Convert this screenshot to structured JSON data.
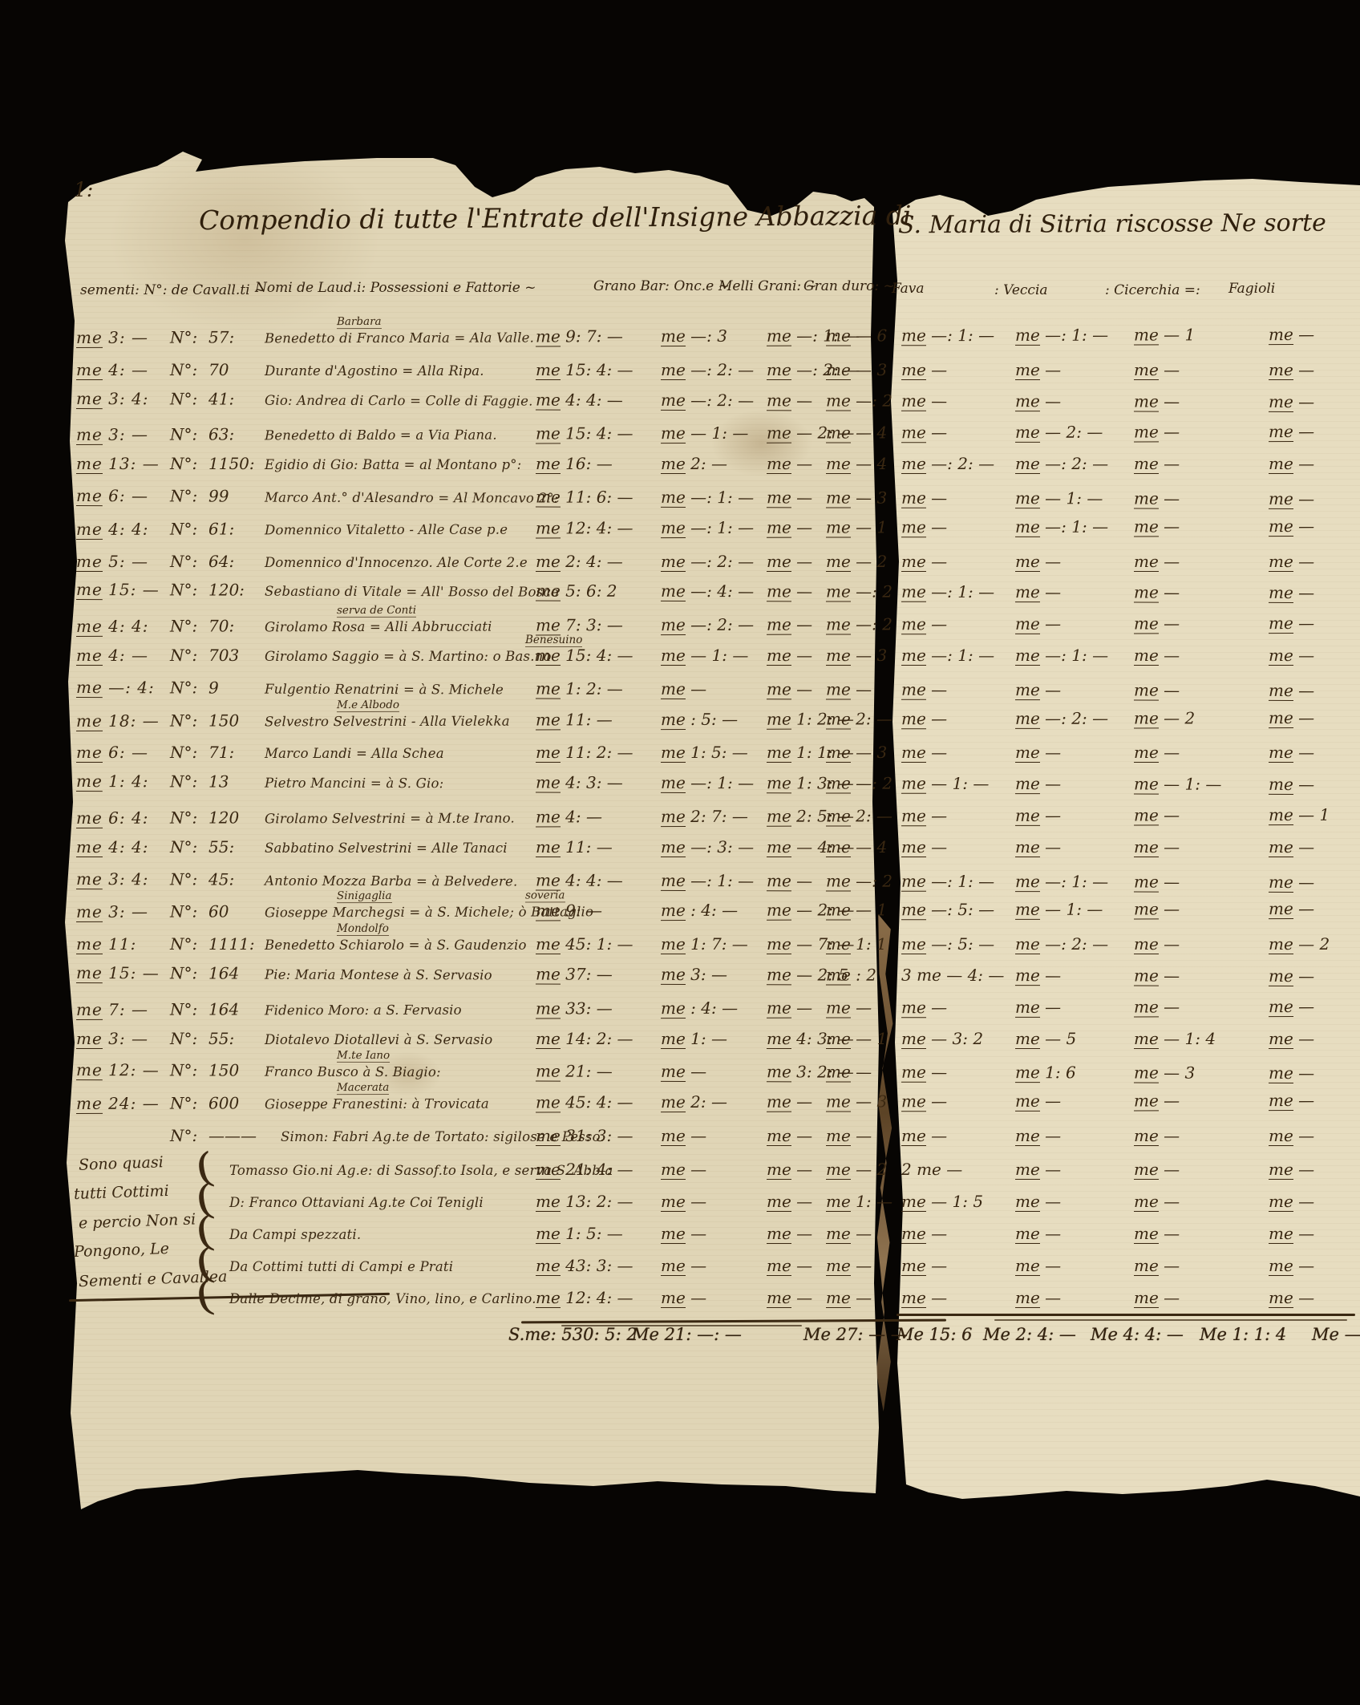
{
  "folio_mark": "1:",
  "title": {
    "left": "Compendio di tutte l'Entrate dell'Insigne Abbazzia di",
    "right": "S. Maria di Sitria riscosse Ne sorte"
  },
  "headers": {
    "left": [
      "sementi: N°: de Cavall.ti ~",
      "Nomi de Laud.i: Possessioni e Fattorie ~",
      "Grano Bar: Onc.e ~",
      "Melli Grani: ~",
      "Gran duro: ~",
      "Fava"
    ],
    "right": [
      ": Veccia",
      ": Cicerchia =:",
      "Fagioli"
    ]
  },
  "rows": [
    {
      "s": "me 3: —",
      "no": "N°:",
      "num": "57:",
      "ann": "Barbara",
      "name": "Benedetto di Franco Maria",
      "loc": "= Ala Valle.",
      "g": "me 9: 7: —",
      "m": "me —: 3",
      "d": "me —: 1: —",
      "f": "me — 6",
      "v": "me —: 1: —",
      "c": "me —: 1: —",
      "fg": "me — 1",
      "x": "me —"
    },
    {
      "s": "me 4: —",
      "no": "N°:",
      "num": "70",
      "name": "Durante d'Agostino",
      "loc": "= Alla Ripa.",
      "g": "me 15: 4: —",
      "m": "me —: 2: —",
      "d": "me —: 2: —",
      "f": "me — 3",
      "v": "me —",
      "c": "me —",
      "fg": "me —",
      "x": "me —"
    },
    {
      "s": "me 3: 4:",
      "no": "N°:",
      "num": "41:",
      "name": "Gio: Andrea di Carlo",
      "loc": "= Colle di Faggie.",
      "g": "me 4: 4: —",
      "m": "me —: 2: —",
      "d": "me —",
      "f": "me —: 2",
      "v": "me —",
      "c": "me —",
      "fg": "me —",
      "x": "me —"
    },
    {
      "s": "me 3: —",
      "no": "N°:",
      "num": "63:",
      "name": "Benedetto di Baldo",
      "loc": "= a Via Piana.",
      "g": "me 15: 4: —",
      "m": "me — 1: —",
      "d": "me — 2: —",
      "f": "me — 4",
      "v": "me —",
      "c": "me — 2: —",
      "fg": "me —",
      "x": "me —"
    },
    {
      "s": "me 13: —",
      "no": "N°:",
      "num": "1150:",
      "name": "Egidio di Gio: Batta",
      "loc": "= al Montano p°:",
      "g": "me 16: —",
      "m": "me 2: —",
      "d": "me —",
      "f": "me — 4",
      "v": "me —: 2: —",
      "c": "me —: 2: —",
      "fg": "me —",
      "x": "me —"
    },
    {
      "s": "me 6: —",
      "no": "N°:",
      "num": "99",
      "name": "Marco Ant.° d'Alesandro",
      "loc": "= Al Moncavo 2°:",
      "g": "me 11: 6: —",
      "m": "me —: 1: —",
      "d": "me —",
      "f": "me — 3",
      "v": "me —",
      "c": "me — 1: —",
      "fg": "me —",
      "x": "me —"
    },
    {
      "s": "me 4: 4:",
      "no": "N°:",
      "num": "61:",
      "name": "Domennico Vitaletto",
      "loc": "- Alle Case p.e",
      "g": "me 12: 4: —",
      "m": "me —: 1: —",
      "d": "me —",
      "f": "me — 1",
      "v": "me —",
      "c": "me —: 1: —",
      "fg": "me —",
      "x": "me —"
    },
    {
      "s": "me 5: —",
      "no": "N°:",
      "num": "64:",
      "name": "Domennico d'Innocenzo.",
      "loc": "Ale Corte 2.e",
      "g": "me 2: 4: —",
      "m": "me —: 2: —",
      "d": "me —",
      "f": "me — 2",
      "v": "me —",
      "c": "me —",
      "fg": "me —",
      "x": "me —"
    },
    {
      "s": "me 15: —",
      "no": "N°:",
      "num": "120:",
      "name": "Sebastiano di Vitale",
      "loc": "= All' Bosso del Bosco",
      "g": "me 5: 6: 2",
      "m": "me —: 4: —",
      "d": "me —",
      "f": "me —: 2",
      "v": "me —: 1: —",
      "c": "me —",
      "fg": "me —",
      "x": "me —"
    },
    {
      "s": "me 4: 4:",
      "no": "N°:",
      "num": "70:",
      "ann": "serva de Conti",
      "name": "Girolamo Rosa",
      "loc": "= Alli Abbrucciati",
      "g": "me 7: 3: —",
      "m": "me —: 2: —",
      "d": "me —",
      "f": "me —: 2",
      "v": "me —",
      "c": "me —",
      "fg": "me —",
      "x": "me —"
    },
    {
      "s": "me 4: —",
      "no": "N°:",
      "num": "703",
      "ann2": "Benesuino",
      "name": "Girolamo Saggio",
      "loc": "= à S. Martino: o Bas.no",
      "g": "me 15: 4: —",
      "m": "me — 1: —",
      "d": "me —",
      "f": "me — 3",
      "v": "me —: 1: —",
      "c": "me —: 1: —",
      "fg": "me —",
      "x": "me —"
    },
    {
      "s": "me —: 4:",
      "no": "N°:",
      "num": "9",
      "name": "Fulgentio Renatrini",
      "loc": "= à S. Michele",
      "g": "me 1: 2: —",
      "m": "me —",
      "d": "me —",
      "f": "me —",
      "v": "me —",
      "c": "me —",
      "fg": "me —",
      "x": "me —"
    },
    {
      "s": "me 18: —",
      "no": "N°:",
      "num": "150",
      "ann": "M.e Albodo",
      "name": "Selvestro Selvestrini",
      "loc": "- Alla Vielekka",
      "g": "me 11: —",
      "m": "me : 5: —",
      "d": "me 1: 2: —",
      "f": "me 2: —",
      "v": "me —",
      "c": "me —: 2: —",
      "fg": "me — 2",
      "x": "me —"
    },
    {
      "s": "me 6: —",
      "no": "N°:",
      "num": "71:",
      "name": "Marco Landi",
      "loc": "= Alla Schea",
      "g": "me 11: 2: —",
      "m": "me 1: 5: —",
      "d": "me 1: 1: —",
      "f": "me — 3",
      "v": "me —",
      "c": "me —",
      "fg": "me —",
      "x": "me —"
    },
    {
      "s": "me 1: 4:",
      "no": "N°:",
      "num": "13",
      "name": "Pietro Mancini",
      "loc": "= à S. Gio:",
      "g": "me 4: 3: —",
      "m": "me —: 1: —",
      "d": "me 1: 3: —",
      "f": "me —: 2",
      "v": "me — 1: —",
      "c": "me —",
      "fg": "me — 1: —",
      "x": "me —"
    },
    {
      "s": "me 6: 4:",
      "no": "N°:",
      "num": "120",
      "name": "Girolamo Selvestrini",
      "loc": "= à M.te Irano.",
      "g": "me 4: —",
      "m": "me 2: 7: —",
      "d": "me 2: 5: —",
      "f": "me 2: —",
      "v": "me —",
      "c": "me —",
      "fg": "me —",
      "x": "me — 1"
    },
    {
      "s": "me 4: 4:",
      "no": "N°:",
      "num": "55:",
      "name": "Sabbatino Selvestrini",
      "loc": "= Alle Tanaci",
      "g": "me 11: —",
      "m": "me —: 3: —",
      "d": "me — 4: —",
      "f": "me — 4",
      "v": "me —",
      "c": "me —",
      "fg": "me —",
      "x": "me —"
    },
    {
      "s": "me 3: 4:",
      "no": "N°:",
      "num": "45:",
      "name": "Antonio Mozza Barba",
      "loc": "= à Belvedere.",
      "g": "me 4: 4: —",
      "m": "me —: 1: —",
      "d": "me —",
      "f": "me —: 2",
      "v": "me —: 1: —",
      "c": "me —: 1: —",
      "fg": "me —",
      "x": "me —"
    },
    {
      "s": "me 3: —",
      "no": "N°:",
      "num": "60",
      "ann": "Sinigaglia",
      "ann2": "soveria",
      "name": "Gioseppe Marchegsi",
      "loc": "= à S. Michele; ò Battaglio",
      "g": "me 9: —",
      "m": "me : 4: —",
      "d": "me — 2: —",
      "f": "me — 1",
      "v": "me —: 5: —",
      "c": "me — 1: —",
      "fg": "me —",
      "x": "me —"
    },
    {
      "s": "me 11:",
      "no": "N°:",
      "num": "1111:",
      "ann": "Mondolfo",
      "name": "Benedetto Schiarolo",
      "loc": "= à S. Gaudenzio",
      "g": "me 45: 1: —",
      "m": "me 1: 7: —",
      "d": "me — 7: —",
      "f": "me 1: 1",
      "v": "me —: 5: —",
      "c": "me —: 2: —",
      "fg": "me —",
      "x": "me — 2"
    },
    {
      "s": "me 15: —",
      "no": "N°:",
      "num": "164",
      "name": "Pie: Maria Montese",
      "loc": "à S. Servasio",
      "g": "me 37: —",
      "m": "me 3: —",
      "d": "me — 2: 5",
      "f": "me : 2",
      "v": "3 me — 4: —",
      "c": "me —",
      "fg": "me —",
      "x": "me —"
    },
    {
      "s": "me 7: —",
      "no": "N°:",
      "num": "164",
      "name": "Fidenico Moro:",
      "loc": "a S. Fervasio",
      "g": "me 33: —",
      "m": "me : 4: —",
      "d": "me —",
      "f": "me —",
      "v": "me —",
      "c": "me —",
      "fg": "me —",
      "x": "me —"
    },
    {
      "s": "me 3: —",
      "no": "N°:",
      "num": "55:",
      "name": "Diotalevo Diotallevi",
      "loc": "à S. Servasio",
      "g": "me 14: 2: —",
      "m": "me 1: —",
      "d": "me 4: 3: —",
      "f": "me — 1",
      "v": "me — 3: 2",
      "c": "me — 5",
      "fg": "me — 1: 4",
      "x": "me —"
    },
    {
      "s": "me 12: —",
      "no": "N°:",
      "num": "150",
      "ann": "M.te Iano",
      "name": "Franco Busco",
      "loc": "à S. Biagio:",
      "g": "me 21: —",
      "m": "me —",
      "d": "me 3: 2: —",
      "f": "me —",
      "v": "me —",
      "c": "me 1: 6",
      "fg": "me — 3",
      "x": "me —"
    },
    {
      "s": "me 24: —",
      "no": "N°:",
      "num": "600",
      "ann": "Macerata",
      "name": "Gioseppe Franestini:",
      "loc": "à Trovicata",
      "g": "me 45: 4: —",
      "m": "me 2: —",
      "d": "me —",
      "f": "me — 3",
      "v": "me —",
      "c": "me —",
      "fg": "me —",
      "x": "me —"
    },
    {
      "s": "",
      "no": "N°:",
      "num": "———",
      "name": "Simon: Fabri Ag.te de Tortato: sigilose e Pesso.",
      "loc": "",
      "g": "me 31: 3: —",
      "m": "me —",
      "d": "me —",
      "f": "me —",
      "v": "me —",
      "c": "me —",
      "fg": "me —",
      "x": "me —"
    }
  ],
  "margin_note": {
    "lines": [
      "Sono quasi",
      "tutti Cottimi",
      "e percio Non si",
      "Pongono, Le",
      "Sementi e Cavallea"
    ]
  },
  "footer_rows": [
    {
      "label": "Tomasso Gio.ni Ag.e: di Sassof.to Isola, e serva S. Abb.a",
      "g": "me 21: 4: —",
      "m": "me —",
      "d": "me —",
      "f": "me — 2",
      "v": "2 me —",
      "c": "me —",
      "fg": "me —",
      "x": "me —"
    },
    {
      "label": "D: Franco Ottaviani Ag.te Coi Tenigli",
      "g": "me 13: 2: —",
      "m": "me —",
      "d": "me —",
      "f": "me 1: —",
      "v": "me — 1: 5",
      "c": "me —",
      "fg": "me —",
      "x": "me —"
    },
    {
      "label": "Da Campi spezzati.",
      "g": "me 1: 5: —",
      "m": "me —",
      "d": "me —",
      "f": "me —",
      "v": "me —",
      "c": "me —",
      "fg": "me —",
      "x": "me —"
    },
    {
      "label": "Da Cottimi tutti di Campi e Prati",
      "g": "me 43: 3: —",
      "m": "me —",
      "d": "me —",
      "f": "me —",
      "v": "me —",
      "c": "me —",
      "fg": "me —",
      "x": "me —"
    },
    {
      "label": "Dalle Decime, di grano, Vino, lino, e Carlino.",
      "g": "me 12: 4: —",
      "m": "me —",
      "d": "me —",
      "f": "me —",
      "v": "me —",
      "c": "me —",
      "fg": "me —",
      "x": "me —"
    }
  ],
  "totals": {
    "sum": "S.me: 530: 5: 2",
    "m": "Me 21: —: —",
    "d": "Me 27: — —",
    "f": "Me 15: 6",
    "v": "Me 2: 4: —",
    "c": "Me 4: 4: —",
    "fg": "Me 1: 1: 4",
    "x": "Me —"
  },
  "colors": {
    "ink": "#3a2812",
    "paper_left": "#e0d5b6",
    "paper_right": "#e7ddc0",
    "background": "#070503"
  }
}
